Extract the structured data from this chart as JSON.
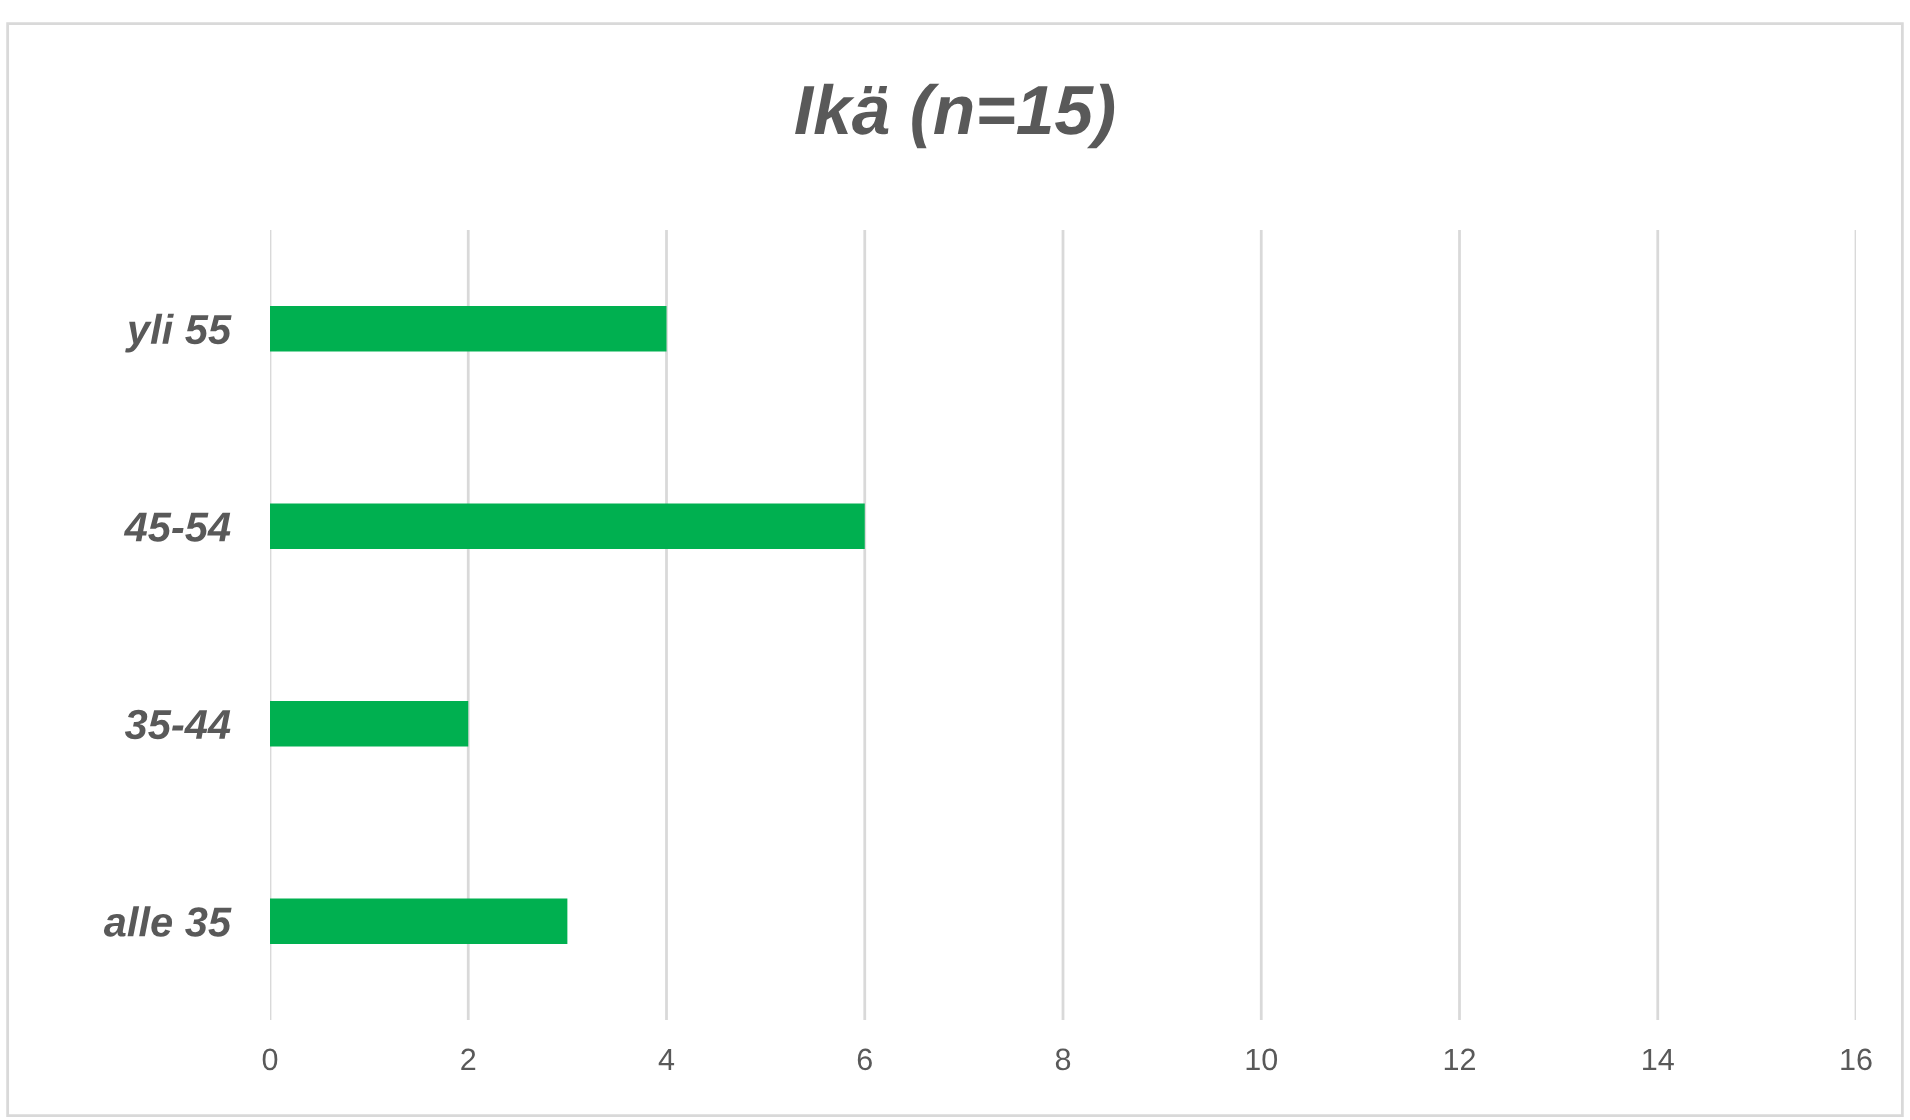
{
  "chart_data": {
    "type": "bar",
    "title": "Ikä (n=15)",
    "orientation": "horizontal",
    "categories": [
      "yli 55",
      "45-54",
      "35-44",
      "alle 35"
    ],
    "values": [
      4,
      6,
      2,
      3
    ],
    "color": "#00b050",
    "xlim": [
      0,
      16
    ],
    "xticks": [
      0,
      2,
      4,
      6,
      8,
      10,
      12,
      14,
      16
    ],
    "grid": "x"
  }
}
